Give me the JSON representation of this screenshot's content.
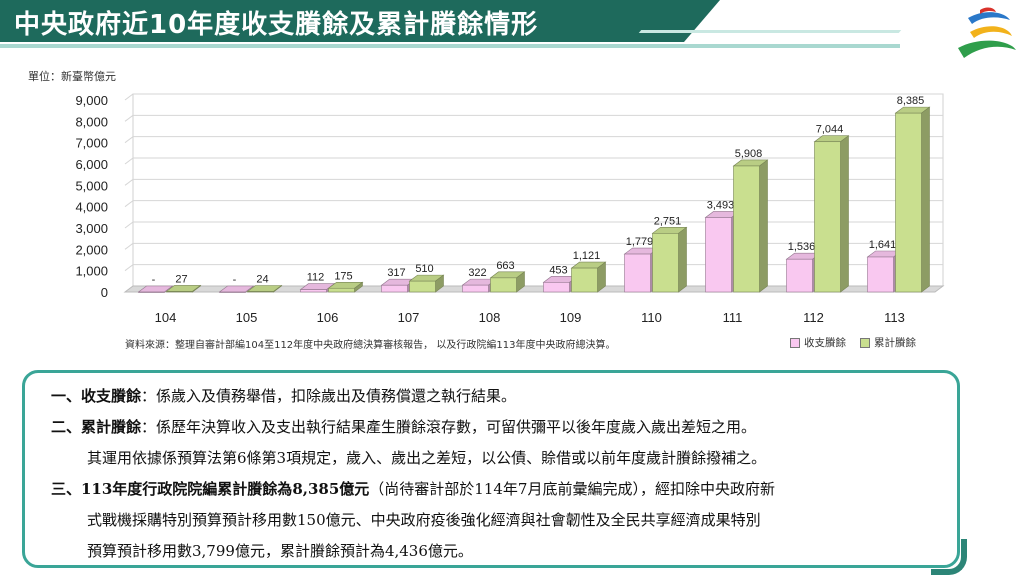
{
  "header": {
    "title": "中央政府近10年度收支賸餘及累計賸餘情形"
  },
  "unit_label": "單位：新臺幣億元",
  "source_note": "資料來源：整理自審計部編104至112年度中央政府總決算審核報告， 以及行政院編113年度中央政府總決算。",
  "legend": [
    {
      "label": "收支賸餘",
      "color": "#f9c8f0"
    },
    {
      "label": "累計賸餘",
      "color": "#c9df8f"
    }
  ],
  "chart_data": {
    "type": "bar",
    "categories": [
      "104",
      "105",
      "106",
      "107",
      "108",
      "109",
      "110",
      "111",
      "112",
      "113"
    ],
    "series": [
      {
        "name": "收支賸餘",
        "values": [
          0,
          0,
          112,
          317,
          322,
          453,
          1779,
          3493,
          1536,
          1641
        ],
        "labels": [
          "-",
          "-",
          "112",
          "317",
          "322",
          "453",
          "1,779",
          "3,493",
          "1,536",
          "1,641"
        ],
        "color": "#f9c8f0"
      },
      {
        "name": "累計賸餘",
        "values": [
          27,
          24,
          175,
          510,
          663,
          1121,
          2751,
          5908,
          7044,
          8385
        ],
        "labels": [
          "27",
          "24",
          "175",
          "510",
          "663",
          "1,121",
          "2,751",
          "5,908",
          "7,044",
          "8,385"
        ],
        "color": "#c9df8f"
      }
    ],
    "ylim": [
      0,
      9000
    ],
    "yticks": [
      "0",
      "1,000",
      "2,000",
      "3,000",
      "4,000",
      "5,000",
      "6,000",
      "7,000",
      "8,000",
      "9,000"
    ],
    "grid": true,
    "legend_position": "bottom-right"
  },
  "notes": {
    "line1_head": "一、收支賸餘",
    "line1_body": "：係歲入及債務舉借，扣除歲出及債務償還之執行結果。",
    "line2_head": "二、累計賸餘",
    "line2_body": "：係歷年決算收入及支出執行結果產生賸餘滾存數，可留供彌平以後年度歲入歲出差短之用。",
    "line3": "其運用依據係預算法第6條第3項規定，歲入、歲出之差短，以公債、賒借或以前年度歲計賸餘撥補之。",
    "line4_head": "三、113年度行政院院編累計賸餘為8,385億元",
    "line4_body": "（尚待審計部於114年7月底前彙編完成），經扣除中央政府新",
    "line5": "式戰機採購特別預算預計移用數150億元、中央政府疫後強化經濟與社會韌性及全民共享經濟成果特別",
    "line6": "預算預計移用數3,799億元，累計賸餘預計為4,436億元。"
  }
}
